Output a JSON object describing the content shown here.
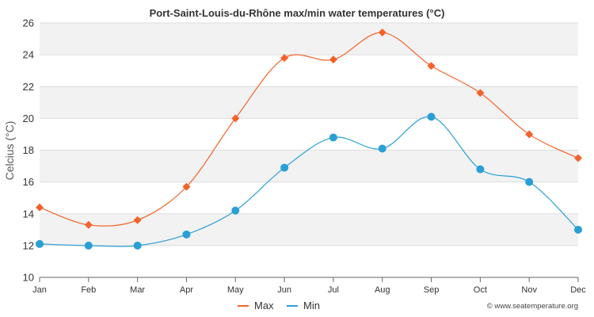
{
  "chart_data": {
    "type": "line",
    "title": "Port-Saint-Louis-du-Rhône max/min water temperatures (°C)",
    "xlabel": "",
    "ylabel": "Celcius (°C)",
    "categories": [
      "Jan",
      "Feb",
      "Mar",
      "Apr",
      "May",
      "Jun",
      "Jul",
      "Aug",
      "Sep",
      "Oct",
      "Nov",
      "Dec"
    ],
    "ylim": [
      10,
      26
    ],
    "yticks": [
      10,
      12,
      14,
      16,
      18,
      20,
      22,
      24,
      26
    ],
    "grid": true,
    "legend": "bottom-center",
    "series": [
      {
        "name": "Max",
        "color": "#f4622a",
        "marker": "diamond",
        "values": [
          14.4,
          13.3,
          13.6,
          15.7,
          20.0,
          23.8,
          23.7,
          25.4,
          23.3,
          21.6,
          19.0,
          17.5
        ]
      },
      {
        "name": "Min",
        "color": "#2a9fd6",
        "marker": "circle",
        "values": [
          12.1,
          12.0,
          12.0,
          12.7,
          14.2,
          16.9,
          18.8,
          18.1,
          20.1,
          16.8,
          16.0,
          13.0
        ]
      }
    ],
    "credit": "© www.seatemperature.org"
  }
}
